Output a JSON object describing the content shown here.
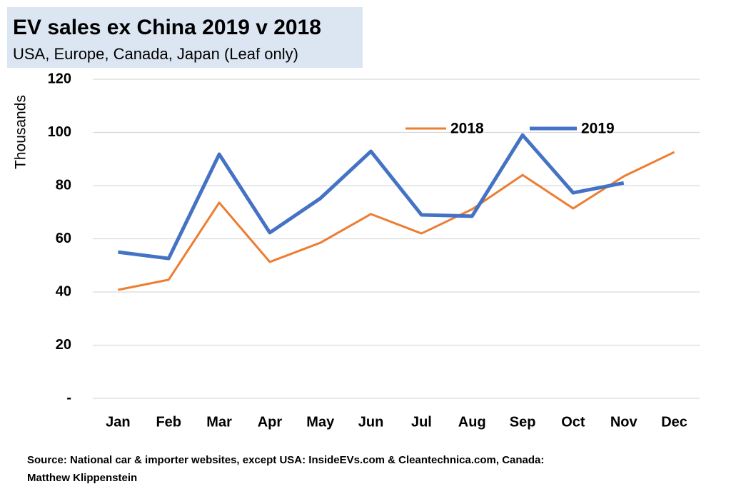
{
  "chart_data": {
    "type": "line",
    "title": "EV sales ex China 2019 v 2018",
    "subtitle": "USA, Europe,  Canada, Japan (Leaf only)",
    "y_label": "Thousands",
    "source": [
      "Source: National car & importer websites, except USA: InsideEVs.com & Cleantechnica.com, Canada:",
      "Matthew Klippenstein"
    ],
    "categories": [
      "Jan",
      "Feb",
      "Mar",
      "Apr",
      "May",
      "Jun",
      "Jul",
      "Aug",
      "Sep",
      "Oct",
      "Nov",
      "Dec"
    ],
    "series": [
      {
        "name": "2018",
        "color": "#ed7d31",
        "values": [
          40.8,
          44.6,
          73.6,
          51.3,
          58.5,
          69.3,
          62,
          71.1,
          84,
          71.4,
          83.5,
          92.6
        ]
      },
      {
        "name": "2019",
        "color": "#4472c4",
        "values": [
          55,
          52.6,
          91.8,
          62.3,
          75.2,
          92.9,
          69,
          68.5,
          99,
          77.3,
          81,
          null
        ]
      }
    ],
    "ylim": [
      0,
      120
    ],
    "yticks": [
      {
        "value": 0,
        "label": "-"
      },
      20,
      40,
      60,
      80,
      100,
      120
    ],
    "grid": true,
    "legend": "top"
  }
}
